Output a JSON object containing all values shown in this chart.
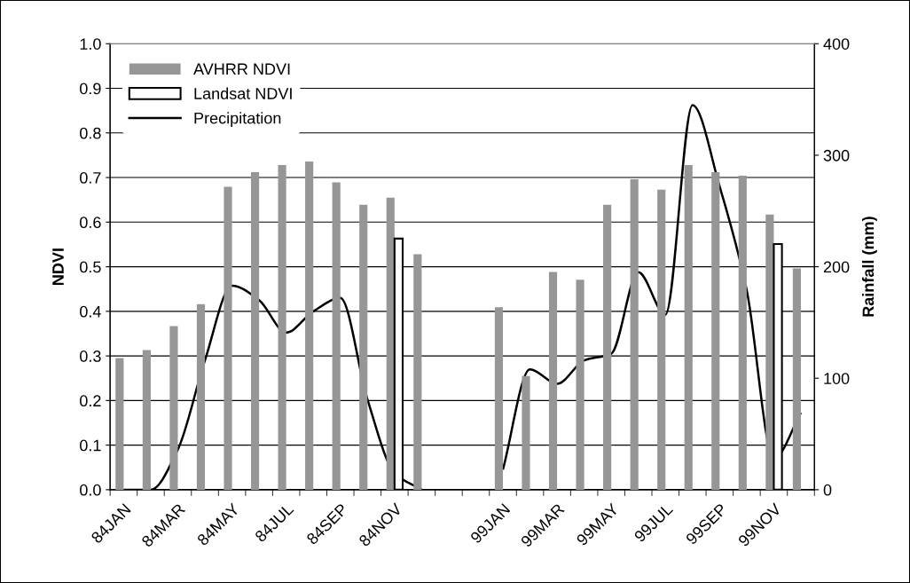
{
  "chart_data": {
    "type": "bar",
    "categories": [
      "84JAN",
      null,
      "84MAR",
      null,
      "84MAY",
      null,
      "84JUL",
      null,
      "84SEP",
      null,
      "84NOV",
      null,
      null,
      null,
      "99JAN",
      null,
      "99MAR",
      null,
      "99MAY",
      null,
      "99JUL",
      null,
      "99SEP",
      null,
      "99NOV",
      null
    ],
    "series": [
      {
        "name": "AVHRR NDVI",
        "color": "#969696",
        "values": [
          0.295,
          0.313,
          0.367,
          0.416,
          0.679,
          0.712,
          0.728,
          0.736,
          0.689,
          0.639,
          0.655,
          0.528,
          null,
          null,
          0.409,
          0.255,
          0.488,
          0.471,
          0.639,
          0.696,
          0.673,
          0.728,
          0.712,
          0.704,
          0.617,
          0.496
        ]
      },
      {
        "name": "Landsat NDVI",
        "color": "#ffffff",
        "values": [
          null,
          null,
          null,
          null,
          null,
          null,
          null,
          null,
          null,
          null,
          0.563,
          null,
          null,
          null,
          null,
          null,
          null,
          null,
          null,
          null,
          null,
          null,
          null,
          null,
          0.551,
          null
        ]
      },
      {
        "name": "Precipitation",
        "type": "line",
        "axis": "y2",
        "color": "#000000",
        "values": [
          0,
          0,
          36,
          116,
          183,
          170,
          141,
          160,
          172,
          81,
          15,
          0,
          null,
          null,
          18,
          108,
          95,
          116,
          122,
          195,
          157,
          345,
          272,
          179,
          28,
          69
        ]
      }
    ],
    "ylabel": "NDVI",
    "y2label": "Rainfall (mm)",
    "ylim": [
      0,
      1
    ],
    "yticks": [
      {
        "value": 0,
        "label": "0.0"
      },
      0.1,
      0.2,
      0.3,
      0.4,
      0.5,
      0.6,
      0.7,
      0.8,
      0.9,
      {
        "value": 1,
        "label": "1.0"
      }
    ],
    "y2lim": [
      0,
      400
    ],
    "y2ticks": [
      0,
      100,
      200,
      300,
      400
    ],
    "grid": "y",
    "legend": "top left",
    "line_style": "solid",
    "marker": "none"
  }
}
